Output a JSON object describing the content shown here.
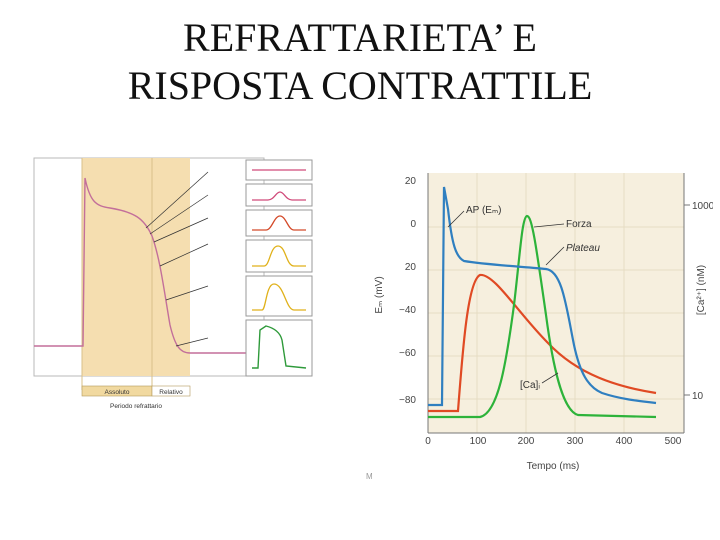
{
  "slide": {
    "title_line1": "REFRATTARIETA’ E",
    "title_line2": "RISPOSTA CONTRATTILE"
  },
  "left_figure": {
    "labels": {
      "absolute": "Assoluto",
      "relative": "Relativo",
      "period": "Periodo refrattario"
    },
    "colors": {
      "shade": "#f5deb0",
      "ap_curve": "#c36f9a",
      "twitch_colors": [
        "#d04a7a",
        "#d44a2a",
        "#e0b11a",
        "#e0b11a",
        "#2e9a3a"
      ]
    }
  },
  "right_figure": {
    "colors": {
      "ap": "#2f7fc0",
      "force": "#2db33a",
      "calcium": "#e04a24",
      "background": "#f6efde"
    }
  },
  "mark": "M"
}
